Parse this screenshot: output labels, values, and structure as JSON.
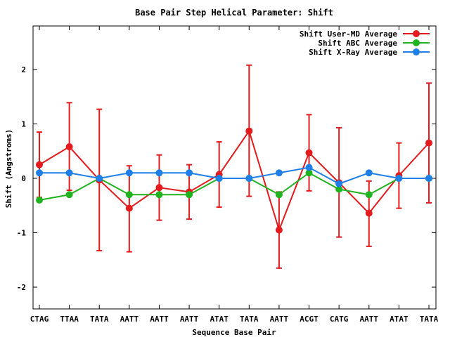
{
  "chart_data": {
    "type": "line",
    "title": "Base Pair Step Helical Parameter: Shift",
    "xlabel": "Sequence Base Pair",
    "ylabel": "Shift (Angstroms)",
    "categories": [
      "CTAG",
      "TTAA",
      "TATA",
      "AATT",
      "AATT",
      "AATT",
      "ATAT",
      "TATA",
      "AATT",
      "ACGT",
      "CATG",
      "AATT",
      "ATAT",
      "TATA"
    ],
    "ylim": [
      -2.4,
      2.8
    ],
    "yticks": [
      -2,
      -1,
      0,
      1,
      2
    ],
    "ytick_labels": [
      "-2",
      "-1",
      "0",
      "1",
      "2"
    ],
    "legend_position": "top-right",
    "grid": false,
    "series": [
      {
        "name": "Shift User-MD Average",
        "color": "#e41a1c",
        "values": [
          0.25,
          0.58,
          -0.03,
          -0.55,
          -0.17,
          -0.25,
          0.07,
          0.87,
          -0.95,
          0.47,
          -0.08,
          -0.64,
          0.05,
          0.65
        ],
        "error_low": [
          -0.35,
          -0.22,
          -1.33,
          -1.35,
          -0.77,
          -0.75,
          -0.53,
          -0.33,
          -1.65,
          -0.23,
          -1.08,
          -1.25,
          -0.55,
          -0.45
        ],
        "error_high": [
          0.85,
          1.39,
          1.27,
          0.23,
          0.43,
          0.25,
          0.67,
          2.08,
          -0.25,
          1.17,
          0.93,
          -0.05,
          0.65,
          1.75
        ]
      },
      {
        "name": "Shift ABC Average",
        "color": "#1fb41f",
        "values": [
          -0.4,
          -0.3,
          0.0,
          -0.3,
          -0.3,
          -0.3,
          0.0,
          0.0,
          -0.3,
          0.1,
          -0.2,
          -0.3,
          0.0,
          0.0
        ]
      },
      {
        "name": "Shift X-Ray Average",
        "color": "#1e7fe8",
        "values": [
          0.1,
          0.1,
          0.0,
          0.1,
          0.1,
          0.1,
          0.0,
          0.0,
          0.1,
          0.2,
          -0.1,
          0.1,
          0.0,
          0.0
        ]
      }
    ]
  }
}
